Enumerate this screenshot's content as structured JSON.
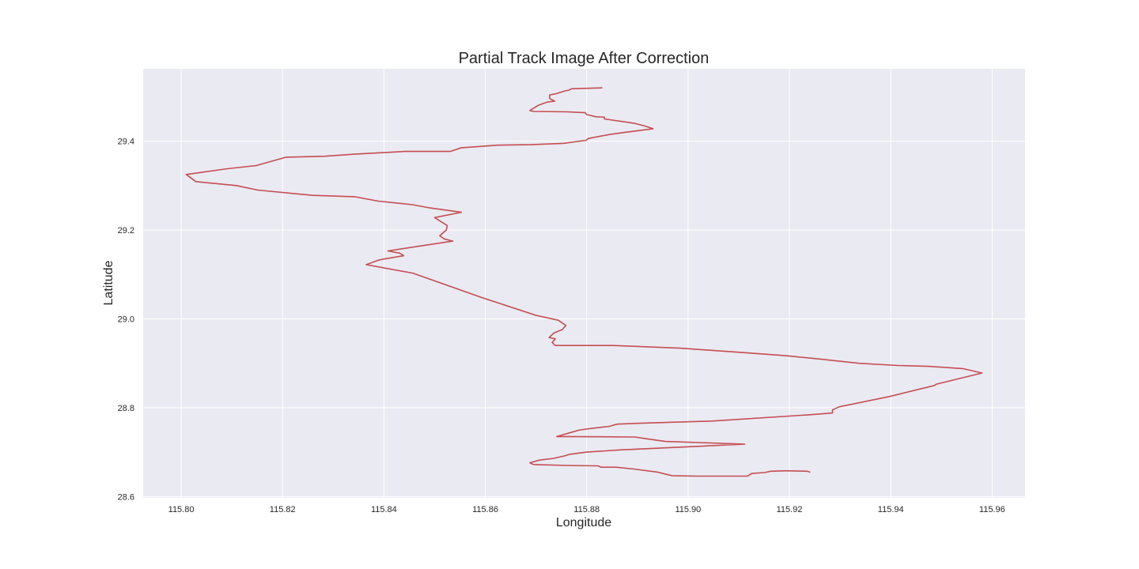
{
  "chart_data": {
    "type": "line",
    "title": "Partial Track Image After Correction",
    "xlabel": "Longitude",
    "ylabel": "Latitude",
    "xlim": [
      115.7925,
      115.9665
    ],
    "ylim": [
      28.597,
      29.563
    ],
    "grid": true,
    "colors": {
      "line": "#c44e52",
      "background": "#eaeaf2",
      "grid": "#ffffff"
    },
    "x_ticks": [
      {
        "value": 115.8,
        "label": "115.80"
      },
      {
        "value": 115.82,
        "label": "115.82"
      },
      {
        "value": 115.84,
        "label": "115.84"
      },
      {
        "value": 115.86,
        "label": "115.86"
      },
      {
        "value": 115.88,
        "label": "115.88"
      },
      {
        "value": 115.9,
        "label": "115.90"
      },
      {
        "value": 115.92,
        "label": "115.92"
      },
      {
        "value": 115.94,
        "label": "115.94"
      },
      {
        "value": 115.96,
        "label": "115.96"
      }
    ],
    "y_ticks": [
      {
        "value": 28.6,
        "label": "28.6"
      },
      {
        "value": 28.8,
        "label": "28.8"
      },
      {
        "value": 29.0,
        "label": "29.0"
      },
      {
        "value": 29.2,
        "label": "29.2"
      },
      {
        "value": 29.4,
        "label": "29.4"
      }
    ],
    "series": [
      {
        "x": [
          115.883,
          115.877,
          115.8765,
          115.8757,
          115.874,
          115.8727,
          115.8727,
          115.8737,
          115.8722,
          115.8705,
          115.8688,
          115.8695,
          115.876,
          115.8797,
          115.88,
          115.8818,
          115.8835,
          115.8835,
          115.8895,
          115.8915,
          115.8931,
          115.8876,
          115.8845,
          115.8803,
          115.8799,
          115.8754,
          115.8689,
          115.8624,
          115.8552,
          115.8531,
          115.8442,
          115.8345,
          115.8283,
          115.8207,
          115.8148,
          115.8091,
          115.801,
          115.8029,
          115.8109,
          115.8151,
          115.826,
          115.8342,
          115.8389,
          115.8456,
          115.8489,
          115.8553,
          115.85,
          115.8511,
          115.8525,
          115.8523,
          115.851,
          115.8519,
          115.8536,
          115.8408,
          115.8431,
          115.8439,
          115.8397,
          115.8389,
          115.8365,
          115.8457,
          115.8593,
          115.87,
          115.8744,
          115.8759,
          115.8752,
          115.8735,
          115.8726,
          115.8738,
          115.8732,
          115.8738,
          115.8853,
          115.8985,
          115.911,
          115.9193,
          115.9256,
          115.9337,
          115.9415,
          115.9475,
          115.9542,
          115.958,
          115.949,
          115.9486,
          115.9397,
          115.9298,
          115.9285,
          115.9285,
          115.9238,
          115.9047,
          115.8905,
          115.886,
          115.8845,
          115.8815,
          115.8787,
          115.8771,
          115.8741,
          115.876,
          115.8895,
          115.8918,
          115.8955,
          115.9112,
          115.9097,
          115.8866,
          115.88,
          115.8766,
          115.8758,
          115.8735,
          115.8707,
          115.8688,
          115.8695,
          115.8763,
          115.8823,
          115.8828,
          115.8858,
          115.8893,
          115.894,
          115.8957,
          115.8968,
          115.902,
          115.9117,
          115.9126,
          115.9151,
          115.9163,
          115.9194,
          115.9235,
          115.924
        ],
        "y": [
          29.52,
          29.518,
          29.515,
          29.513,
          29.507,
          29.504,
          29.496,
          29.49,
          29.488,
          29.481,
          29.469,
          29.467,
          29.466,
          29.464,
          29.46,
          29.455,
          29.454,
          29.45,
          29.44,
          29.434,
          29.428,
          29.42,
          29.415,
          29.406,
          29.402,
          29.395,
          29.392,
          29.391,
          29.385,
          29.377,
          29.377,
          29.371,
          29.366,
          29.364,
          29.345,
          29.338,
          29.325,
          29.309,
          29.3,
          29.29,
          29.278,
          29.275,
          29.265,
          29.257,
          29.25,
          29.24,
          29.228,
          29.22,
          29.21,
          29.2,
          29.187,
          29.18,
          29.175,
          29.153,
          29.148,
          29.142,
          29.134,
          29.132,
          29.122,
          29.103,
          29.048,
          29.008,
          28.997,
          28.985,
          28.976,
          28.968,
          28.958,
          28.955,
          28.947,
          28.94,
          28.94,
          28.934,
          28.924,
          28.917,
          28.91,
          28.9,
          28.895,
          28.893,
          28.888,
          28.878,
          28.853,
          28.85,
          28.825,
          28.802,
          28.795,
          28.788,
          28.784,
          28.77,
          28.765,
          28.763,
          28.758,
          28.754,
          28.75,
          28.745,
          28.735,
          28.735,
          28.734,
          28.73,
          28.724,
          28.718,
          28.717,
          28.705,
          28.7,
          28.695,
          28.692,
          28.686,
          28.682,
          28.676,
          28.672,
          28.67,
          28.669,
          28.666,
          28.666,
          28.662,
          28.655,
          28.65,
          28.647,
          28.646,
          28.646,
          28.652,
          28.654,
          28.657,
          28.658,
          28.657,
          28.655
        ]
      }
    ]
  }
}
